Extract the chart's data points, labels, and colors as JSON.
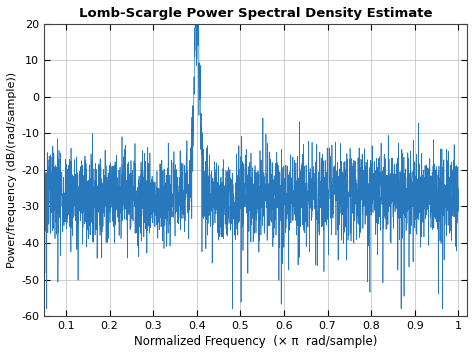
{
  "title": "Lomb-Scargle Power Spectral Density Estimate",
  "xlabel": "Normalized Frequency  (× π  rad/sample)",
  "ylabel": "Power/frequency (dB/(rad/sample))",
  "xlim": [
    0.05,
    1.02
  ],
  "ylim": [
    -60,
    20
  ],
  "yticks": [
    -60,
    -50,
    -40,
    -30,
    -20,
    -10,
    0,
    10,
    20
  ],
  "xticks": [
    0.1,
    0.2,
    0.3,
    0.4,
    0.5,
    0.6,
    0.7,
    0.8,
    0.9,
    1.0
  ],
  "line_color": "#2878be",
  "background_color": "#ffffff",
  "grid_color": "#c8c8c8",
  "peak_freq": 0.4,
  "peak_value": 19.0,
  "noise_floor_mean": -26.0,
  "noise_floor_std": 5.5,
  "num_points": 3000,
  "seed": 7
}
